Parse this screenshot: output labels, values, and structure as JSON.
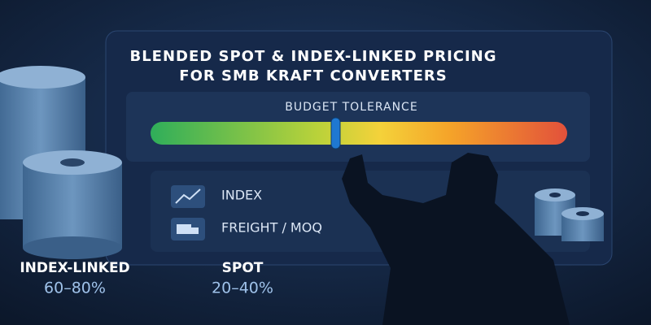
{
  "header": {
    "title_lines": [
      "BLENDED SPOT & INDEX-LINKED PRICING",
      "FOR SMB KRAFT CONVERTERS"
    ]
  },
  "gauge": {
    "label": "BUDGET TOLERANCE"
  },
  "factors": [
    {
      "label": "INDEX"
    },
    {
      "label": "FREIGHT / MOQ"
    }
  ],
  "mix": [
    {
      "label": "INDEX-LINKED",
      "share": "60–80%"
    },
    {
      "label": "SPOT",
      "share": "20–40%"
    }
  ]
}
